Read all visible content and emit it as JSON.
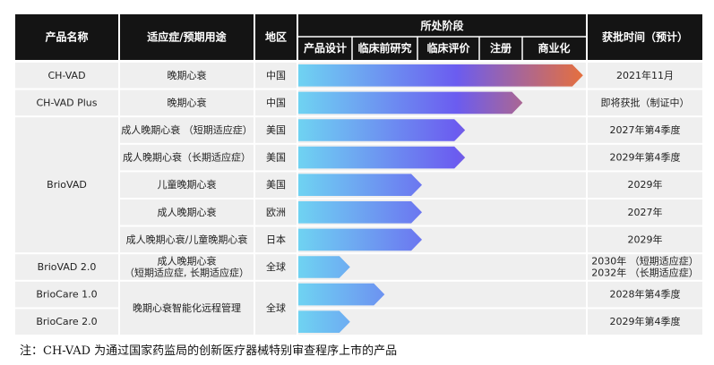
{
  "header": {
    "product": "产品名称",
    "indication": "适应症/预期用途",
    "region": "地区",
    "stage_group": "所处阶段",
    "approval": "获批时间（预计）",
    "stages": [
      "产品设计",
      "临床前研究",
      "临床评价",
      "注册",
      "商业化"
    ]
  },
  "groups": [
    {
      "name": "CH-VAD",
      "rows": [
        0
      ]
    },
    {
      "name": "CH-VAD Plus",
      "rows": [
        1
      ]
    },
    {
      "name": "BrioVAD",
      "rows": [
        2,
        3,
        4,
        5,
        6
      ]
    },
    {
      "name": "BrioVAD 2.0",
      "rows": [
        7
      ]
    },
    {
      "name": "BrioCare 1.0",
      "rows": [
        8
      ]
    },
    {
      "name": "BrioCare 2.0",
      "rows": [
        9
      ]
    }
  ],
  "indication_groups": [
    {
      "rows": [
        0
      ],
      "lines": [
        "晚期心衰"
      ]
    },
    {
      "rows": [
        1
      ],
      "lines": [
        "晚期心衰"
      ]
    },
    {
      "rows": [
        2
      ],
      "lines": [
        "成人晚期心衰 （短期适应症）"
      ]
    },
    {
      "rows": [
        3
      ],
      "lines": [
        "成人晚期心衰（长期适应症）"
      ]
    },
    {
      "rows": [
        4
      ],
      "lines": [
        "儿童晚期心衰"
      ]
    },
    {
      "rows": [
        5
      ],
      "lines": [
        "成人晚期心衰"
      ]
    },
    {
      "rows": [
        6
      ],
      "lines": [
        "成人晚期心衰/儿童晚期心衰"
      ]
    },
    {
      "rows": [
        7
      ],
      "lines": [
        "成人晚期心衰",
        "（短期适应症, 长期适应症）"
      ]
    },
    {
      "rows": [
        8,
        9
      ],
      "lines": [
        "晚期心衰智能化远程管理"
      ]
    }
  ],
  "region_groups": [
    {
      "rows": [
        0
      ],
      "text": "中国"
    },
    {
      "rows": [
        1
      ],
      "text": "中国"
    },
    {
      "rows": [
        2
      ],
      "text": "美国"
    },
    {
      "rows": [
        3
      ],
      "text": "美国"
    },
    {
      "rows": [
        4
      ],
      "text": "美国"
    },
    {
      "rows": [
        5
      ],
      "text": "欧洲"
    },
    {
      "rows": [
        6
      ],
      "text": "日本"
    },
    {
      "rows": [
        7
      ],
      "text": "全球"
    },
    {
      "rows": [
        8,
        9
      ],
      "text": "全球"
    }
  ],
  "rows": [
    {
      "progress": 0.99,
      "approval": [
        "2021年11月"
      ]
    },
    {
      "progress": 0.78,
      "approval": [
        "即将获批（制证中）"
      ]
    },
    {
      "progress": 0.58,
      "approval": [
        "2027年第4季度"
      ]
    },
    {
      "progress": 0.58,
      "approval": [
        "2029年第4季度"
      ]
    },
    {
      "progress": 0.43,
      "approval": [
        "2029年"
      ]
    },
    {
      "progress": 0.43,
      "approval": [
        "2027年"
      ]
    },
    {
      "progress": 0.43,
      "approval": [
        "2029年"
      ]
    },
    {
      "progress": 0.18,
      "approval": [
        "2030年 （短期适应症）",
        "2032年 （长期适应症）"
      ]
    },
    {
      "progress": 0.3,
      "approval": [
        "2028年第4季度"
      ]
    },
    {
      "progress": 0.18,
      "approval": [
        "2029年第4季度"
      ]
    }
  ],
  "colors": {
    "header_bg": "#141414",
    "row_bg": "#efefef",
    "gradient_start": "#6fd3f2",
    "gradient_mid": "#6b5cf0",
    "gradient_end": "#e8703a"
  },
  "note": "注：CH-VAD 为通过国家药监局的创新医疗器械特别审查程序上市的产品"
}
